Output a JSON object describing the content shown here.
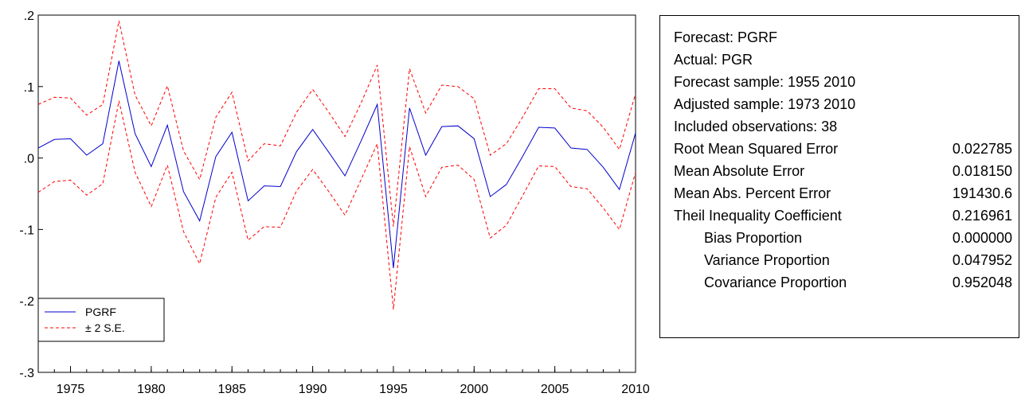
{
  "chart_data": {
    "type": "line",
    "x": [
      1973,
      1974,
      1975,
      1976,
      1977,
      1978,
      1979,
      1980,
      1981,
      1982,
      1983,
      1984,
      1985,
      1986,
      1987,
      1988,
      1989,
      1990,
      1991,
      1992,
      1993,
      1994,
      1995,
      1996,
      1997,
      1998,
      1999,
      2000,
      2001,
      2002,
      2003,
      2004,
      2005,
      2006,
      2007,
      2008,
      2009,
      2010
    ],
    "series": [
      {
        "name": "PGRF",
        "color": "#0000cc",
        "style": "solid",
        "values": [
          0.014,
          0.026,
          0.027,
          0.004,
          0.02,
          0.136,
          0.034,
          -0.012,
          0.046,
          -0.047,
          -0.088,
          0.002,
          0.036,
          -0.06,
          -0.039,
          -0.04,
          0.009,
          0.04,
          0.008,
          -0.025,
          0.024,
          0.075,
          -0.154,
          0.07,
          0.004,
          0.044,
          0.045,
          0.027,
          -0.054,
          -0.037,
          0.002,
          0.043,
          0.042,
          0.014,
          0.012,
          -0.013,
          -0.044,
          0.035
        ]
      },
      {
        "name": "± 2 S.E.",
        "color": "#ff0000",
        "style": "dashed",
        "values": [
          0.075,
          0.085,
          0.084,
          0.06,
          0.075,
          0.192,
          0.088,
          0.045,
          0.101,
          0.01,
          -0.03,
          0.057,
          0.092,
          -0.004,
          0.02,
          0.017,
          0.064,
          0.096,
          0.064,
          0.03,
          0.077,
          0.13,
          -0.096,
          0.125,
          0.063,
          0.102,
          0.1,
          0.083,
          0.004,
          0.02,
          0.057,
          0.097,
          0.097,
          0.07,
          0.066,
          0.043,
          0.012,
          0.09
        ]
      },
      {
        "name": "",
        "color": "#ff0000",
        "style": "dashed",
        "values": [
          -0.048,
          -0.033,
          -0.031,
          -0.052,
          -0.036,
          0.08,
          -0.02,
          -0.068,
          -0.01,
          -0.103,
          -0.148,
          -0.055,
          -0.02,
          -0.115,
          -0.096,
          -0.097,
          -0.046,
          -0.016,
          -0.047,
          -0.08,
          -0.03,
          0.02,
          -0.212,
          0.016,
          -0.054,
          -0.013,
          -0.01,
          -0.03,
          -0.112,
          -0.094,
          -0.053,
          -0.011,
          -0.012,
          -0.04,
          -0.043,
          -0.07,
          -0.1,
          -0.02
        ]
      }
    ],
    "ylim": [
      -0.3,
      0.2
    ],
    "xlim": [
      1973,
      2010
    ],
    "yticks": [
      0.2,
      0.1,
      0.0,
      -0.1,
      -0.2,
      -0.3
    ],
    "ytick_labels": [
      ".2",
      ".1",
      ".0",
      "-.1",
      "-.2",
      "-.3"
    ],
    "xticks": [
      1975,
      1980,
      1985,
      1990,
      1995,
      2000,
      2005,
      2010
    ],
    "xtick_labels": [
      "1975",
      "1980",
      "1985",
      "1990",
      "1995",
      "2000",
      "2005",
      "2010"
    ],
    "legend": {
      "placement": "bottom-left",
      "entries": [
        {
          "label": "PGRF",
          "color": "#0000cc",
          "style": "solid"
        },
        {
          "label": "± 2 S.E.",
          "color": "#ff0000",
          "style": "dashed"
        }
      ]
    },
    "grid": false
  },
  "stats": {
    "lines": [
      "Forecast: PGRF",
      "Actual: PGR",
      "Forecast sample: 1955 2010",
      "Adjusted sample: 1973 2010",
      "Included observations: 38"
    ],
    "rows": [
      {
        "label": "Root Mean Squared Error",
        "value": "0.022785",
        "indent": false
      },
      {
        "label": "Mean Absolute Error",
        "value": "0.018150",
        "indent": false
      },
      {
        "label": "Mean Abs. Percent Error",
        "value": "191430.6",
        "indent": false
      },
      {
        "label": "Theil Inequality Coefficient",
        "value": "0.216961",
        "indent": false
      },
      {
        "label": "Bias Proportion",
        "value": "0.000000",
        "indent": true
      },
      {
        "label": "Variance Proportion",
        "value": "0.047952",
        "indent": true
      },
      {
        "label": "Covariance Proportion",
        "value": "0.952048",
        "indent": true
      }
    ]
  }
}
